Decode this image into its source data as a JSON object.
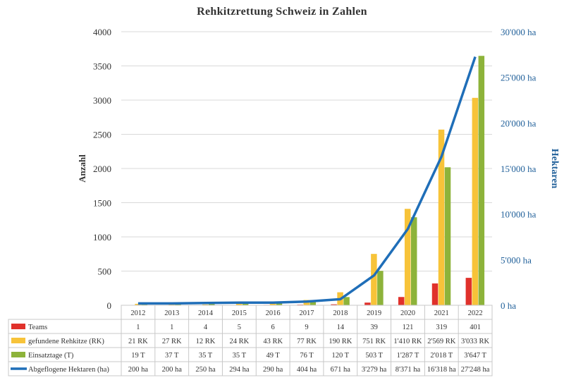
{
  "chart_data": {
    "type": "bar",
    "title": "Rehkitzrettung Schweiz in Zahlen",
    "ylabel": "Anzahl",
    "y2label": "Hektaren",
    "ylim": [
      0,
      4000
    ],
    "y2lim": [
      0,
      30000
    ],
    "yticks": [
      "0",
      "500",
      "1000",
      "1500",
      "2000",
      "2500",
      "3000",
      "3500",
      "4000"
    ],
    "y2ticks": [
      "0 ha",
      "5'000 ha",
      "10'000 ha",
      "15'000 ha",
      "20'000 ha",
      "25'000 ha",
      "30'000 ha"
    ],
    "grid": true,
    "categories": [
      "2012",
      "2013",
      "2014",
      "2015",
      "2016",
      "2017",
      "2018",
      "2019",
      "2020",
      "2021",
      "2022"
    ],
    "series": [
      {
        "name": "Teams",
        "type": "bar",
        "axis": "left",
        "color": "#e0312b",
        "values": [
          1,
          1,
          4,
          5,
          6,
          9,
          14,
          39,
          121,
          319,
          401
        ],
        "labels": [
          "1",
          "1",
          "4",
          "5",
          "6",
          "9",
          "14",
          "39",
          "121",
          "319",
          "401"
        ]
      },
      {
        "name": "gefundene Rehkitze (RK)",
        "type": "bar",
        "axis": "left",
        "color": "#f7c339",
        "values": [
          21,
          27,
          12,
          24,
          43,
          77,
          190,
          751,
          1410,
          2569,
          3033
        ],
        "labels": [
          "21 RK",
          "27 RK",
          "12 RK",
          "24 RK",
          "43 RK",
          "77 RK",
          "190 RK",
          "751 RK",
          "1'410 RK",
          "2'569 RK",
          "3'033 RK"
        ]
      },
      {
        "name": "Einsatztage (T)",
        "type": "bar",
        "axis": "left",
        "color": "#8db33a",
        "values": [
          19,
          37,
          35,
          35,
          49,
          76,
          120,
          503,
          1287,
          2018,
          3647
        ],
        "labels": [
          "19 T",
          "37 T",
          "35 T",
          "35 T",
          "49 T",
          "76 T",
          "120 T",
          "503 T",
          "1'287 T",
          "2'018 T",
          "3'647 T"
        ]
      },
      {
        "name": "Abgeflogene Hektaren (ha)",
        "type": "line",
        "axis": "right",
        "color": "#1f6eb8",
        "values": [
          200,
          200,
          250,
          294,
          290,
          404,
          671,
          3279,
          8371,
          16318,
          27248
        ],
        "labels": [
          "200 ha",
          "200 ha",
          "250 ha",
          "294 ha",
          "290 ha",
          "404 ha",
          "671 ha",
          "3'279 ha",
          "8'371 ha",
          "16'318 ha",
          "27'248 ha"
        ]
      }
    ]
  }
}
